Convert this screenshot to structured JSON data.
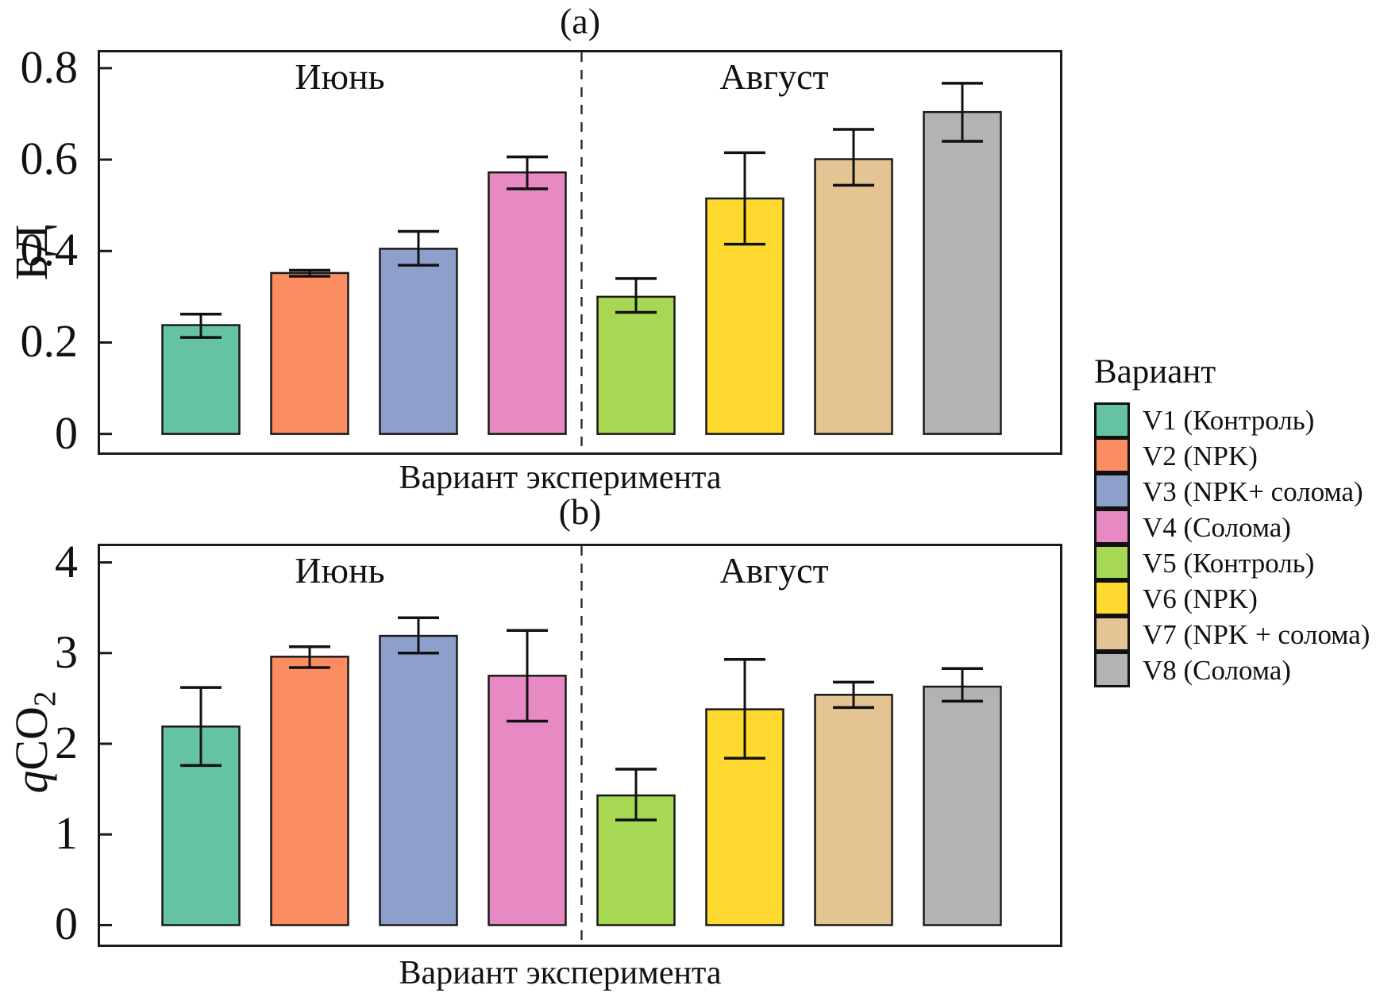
{
  "chart_data": [
    {
      "type": "bar",
      "panel_label": "(a)",
      "ylabel": "БД",
      "xlabel": "Вариант эксперимента",
      "group_labels": [
        "Июнь",
        "Август"
      ],
      "categories": [
        "V1",
        "V2",
        "V3",
        "V4",
        "V5",
        "V6",
        "V7",
        "V8"
      ],
      "values": [
        0.238,
        0.352,
        0.405,
        0.572,
        0.3,
        0.515,
        0.601,
        0.704
      ],
      "error_low": [
        0.211,
        0.345,
        0.369,
        0.536,
        0.266,
        0.415,
        0.544,
        0.64
      ],
      "error_high": [
        0.262,
        0.358,
        0.443,
        0.606,
        0.34,
        0.615,
        0.666,
        0.767
      ],
      "yticks": [
        0,
        0.2,
        0.4,
        0.6,
        0.8
      ],
      "ytick_labels": [
        "0",
        "0.2",
        "0.4",
        "0.6",
        "0.8"
      ],
      "ylim": [
        -0.0405,
        0.8345
      ],
      "divider_after_category": 4,
      "grid": false,
      "legend_position": "right-of-plot"
    },
    {
      "type": "bar",
      "panel_label": "(b)",
      "ylabel": "qCO2",
      "ylabel_parts": {
        "italic": "q",
        "roman": "CO",
        "sub": "2"
      },
      "xlabel": "Вариант эксперимента",
      "group_labels": [
        "Июнь",
        "Август"
      ],
      "categories": [
        "V1",
        "V2",
        "V3",
        "V4",
        "V5",
        "V6",
        "V7",
        "V8"
      ],
      "values": [
        2.19,
        2.96,
        3.19,
        2.75,
        1.43,
        2.38,
        2.54,
        2.63
      ],
      "error_low": [
        1.76,
        2.84,
        3.0,
        2.25,
        1.16,
        1.84,
        2.4,
        2.47
      ],
      "error_high": [
        2.62,
        3.07,
        3.39,
        3.25,
        1.72,
        2.93,
        2.68,
        2.83
      ],
      "yticks": [
        0,
        1,
        2,
        3,
        4
      ],
      "ytick_labels": [
        "0",
        "1",
        "2",
        "3",
        "4"
      ],
      "ylim": [
        -0.215,
        4.18
      ],
      "divider_after_category": 4,
      "grid": false
    }
  ],
  "legend": {
    "title": "Вариант",
    "items": [
      {
        "label": "V1 (Контроль)",
        "color": "#66C2A5"
      },
      {
        "label": "V2 (NPK)",
        "color": "#FC8D62"
      },
      {
        "label": "V3 (NPK+ солома)",
        "color": "#8DA0CB"
      },
      {
        "label": "V4 (Солома)",
        "color": "#E78AC3"
      },
      {
        "label": "V5 (Контроль)",
        "color": "#A6D854"
      },
      {
        "label": "V6 (NPK)",
        "color": "#FFD92F"
      },
      {
        "label": "V7 (NPK + солома)",
        "color": "#E5C494"
      },
      {
        "label": "V8 (Солома)",
        "color": "#B3B3B3"
      }
    ]
  },
  "style": {
    "background": "#FFFFFF",
    "spine_color": "#1a1a1a",
    "bar_edge_color": "#1a1a1a",
    "error_bar_color": "#111111",
    "divider_style": "dashed"
  }
}
